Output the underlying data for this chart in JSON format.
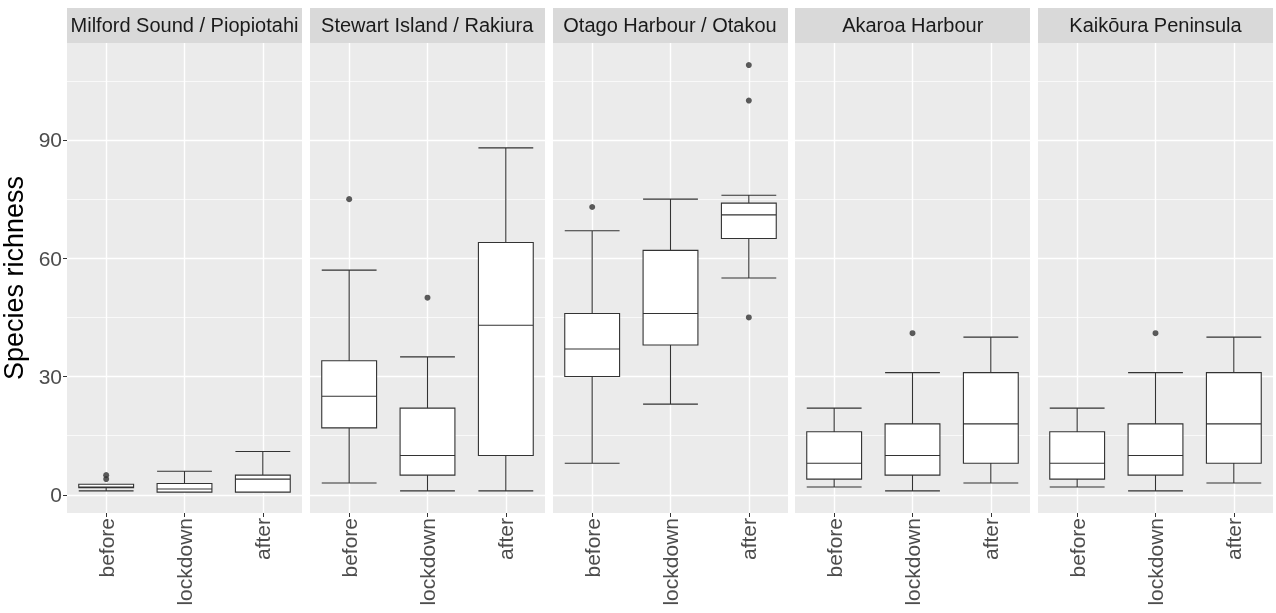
{
  "chart_data": [
    {
      "type": "box",
      "title": "Milford Sound / Piopiotahi",
      "ylabel": "Species richness",
      "categories": [
        "before",
        "lockdown",
        "after"
      ],
      "boxes": [
        {
          "low": 1,
          "q1": 1.8,
          "median": 2,
          "q3": 2.7,
          "high": 2.7,
          "outliers": [
            4,
            5
          ]
        },
        {
          "low": 0.7,
          "q1": 0.7,
          "median": 1.5,
          "q3": 2.9,
          "high": 6
        },
        {
          "low": 0.7,
          "q1": 0.7,
          "median": 4,
          "q3": 5,
          "high": 11
        }
      ],
      "ylim": [
        -4.6,
        114.6
      ],
      "yticks": [
        0,
        30,
        60,
        90
      ],
      "grid": true
    },
    {
      "type": "box",
      "title": "Stewart Island / Rakiura",
      "categories": [
        "before",
        "lockdown",
        "after"
      ],
      "boxes": [
        {
          "low": 3,
          "q1": 17,
          "median": 25,
          "q3": 34,
          "high": 57,
          "outliers": [
            75
          ]
        },
        {
          "low": 1,
          "q1": 5,
          "median": 10,
          "q3": 22,
          "high": 35,
          "outliers": [
            50
          ]
        },
        {
          "low": 1,
          "q1": 10,
          "median": 43,
          "q3": 64,
          "high": 88
        }
      ],
      "ylim": [
        -4.6,
        114.6
      ],
      "yticks": [
        0,
        30,
        60,
        90
      ],
      "grid": true,
      "tick_labels": "x"
    },
    {
      "type": "box",
      "title": "Otago Harbour / Otakou",
      "categories": [
        "before",
        "lockdown",
        "after"
      ],
      "boxes": [
        {
          "low": 8,
          "q1": 30,
          "median": 37,
          "q3": 46,
          "high": 67,
          "outliers": [
            73
          ]
        },
        {
          "low": 23,
          "q1": 38,
          "median": 46,
          "q3": 62,
          "high": 75
        },
        {
          "low": 55,
          "q1": 65,
          "median": 71,
          "q3": 74,
          "high": 76,
          "outliers": [
            45,
            100,
            109
          ]
        }
      ],
      "ylim": [
        -4.6,
        114.6
      ],
      "yticks": [
        0,
        30,
        60,
        90
      ],
      "grid": true,
      "tick_labels": "x"
    },
    {
      "type": "box",
      "title": "Akaroa Harbour",
      "categories": [
        "before",
        "lockdown",
        "after"
      ],
      "boxes": [
        {
          "low": 2,
          "q1": 4,
          "median": 8,
          "q3": 16,
          "high": 22
        },
        {
          "low": 1,
          "q1": 5,
          "median": 10,
          "q3": 18,
          "high": 31,
          "outliers": [
            41
          ]
        },
        {
          "low": 3,
          "q1": 8,
          "median": 18,
          "q3": 31,
          "high": 40
        }
      ],
      "ylim": [
        -4.6,
        114.6
      ],
      "yticks": [
        0,
        30,
        60,
        90
      ],
      "grid": true,
      "tick_labels": "x"
    },
    {
      "type": "box",
      "title": "Kaikōura Peninsula",
      "categories": [
        "before",
        "lockdown",
        "after"
      ],
      "boxes": [
        {
          "low": 2,
          "q1": 4,
          "median": 8,
          "q3": 16,
          "high": 22
        },
        {
          "low": 1,
          "q1": 5,
          "median": 10,
          "q3": 18,
          "high": 31,
          "outliers": [
            41
          ]
        },
        {
          "low": 3,
          "q1": 8,
          "median": 18,
          "q3": 31,
          "high": 40
        }
      ],
      "ylim": [
        -4.6,
        114.6
      ],
      "yticks": [
        0,
        30,
        60,
        90
      ],
      "grid": true,
      "tick_labels": "x"
    }
  ]
}
